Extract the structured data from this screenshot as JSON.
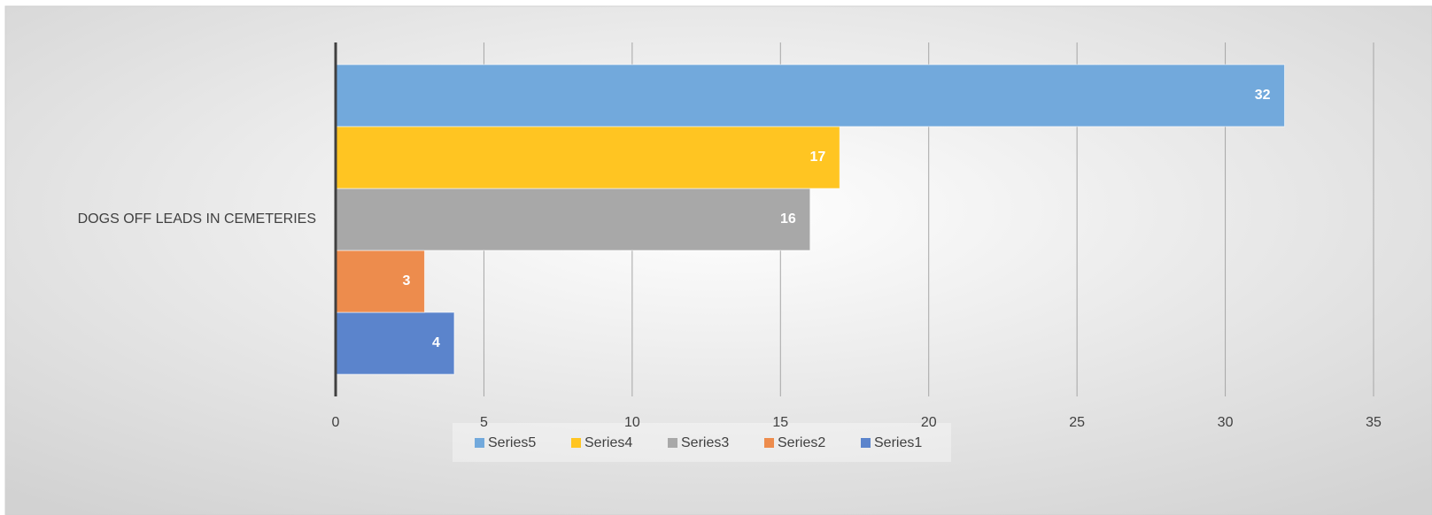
{
  "chart_data": {
    "type": "bar",
    "orientation": "horizontal",
    "categories": [
      "DOGS OFF LEADS IN CEMETERIES"
    ],
    "series": [
      {
        "name": "Series1",
        "color": "#5b84cc",
        "values": [
          4
        ]
      },
      {
        "name": "Series2",
        "color": "#ed8c4d",
        "values": [
          3
        ]
      },
      {
        "name": "Series3",
        "color": "#a8a8a8",
        "values": [
          16
        ]
      },
      {
        "name": "Series4",
        "color": "#ffc522",
        "values": [
          17
        ]
      },
      {
        "name": "Series5",
        "color": "#72a9dc",
        "values": [
          32
        ]
      }
    ],
    "xlim": [
      0,
      35
    ],
    "xticks": [
      0,
      5,
      10,
      15,
      20,
      25,
      30,
      35
    ],
    "grid": true,
    "legend": "bottom"
  }
}
